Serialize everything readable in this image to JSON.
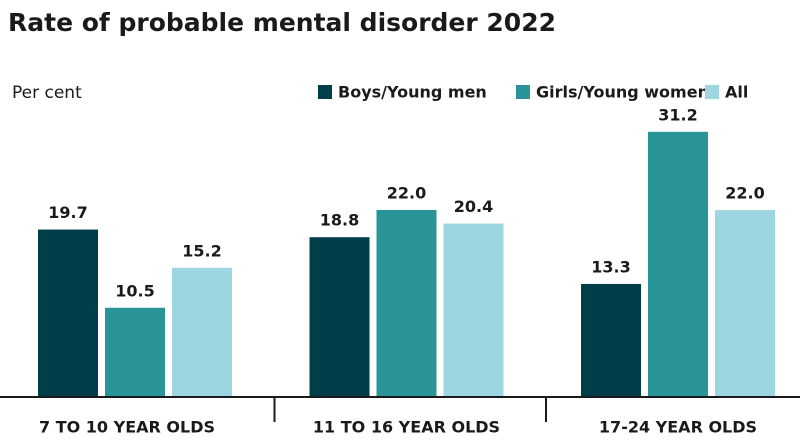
{
  "chart_data": {
    "type": "bar",
    "title": "Rate of probable mental disorder 2022",
    "y_label": "Per cent",
    "categories": [
      "7 TO 10 YEAR OLDS",
      "11 TO 16 YEAR OLDS",
      "17-24 YEAR OLDS"
    ],
    "series": [
      {
        "name": "Boys/Young men",
        "color": "#003f4a",
        "values": [
          19.7,
          18.8,
          13.3
        ]
      },
      {
        "name": "Girls/Young women",
        "color": "#2a9599",
        "values": [
          10.5,
          22.0,
          31.2
        ],
        "value_labels": [
          "10.5",
          "22.0",
          "31.2"
        ]
      },
      {
        "name": "All",
        "color": "#9dd6e0",
        "values": [
          15.2,
          20.4,
          22.0
        ],
        "value_labels": [
          "15.2",
          "20.4",
          "22.0"
        ]
      }
    ],
    "ylim": [
      0,
      32
    ],
    "legend": "top-right"
  }
}
